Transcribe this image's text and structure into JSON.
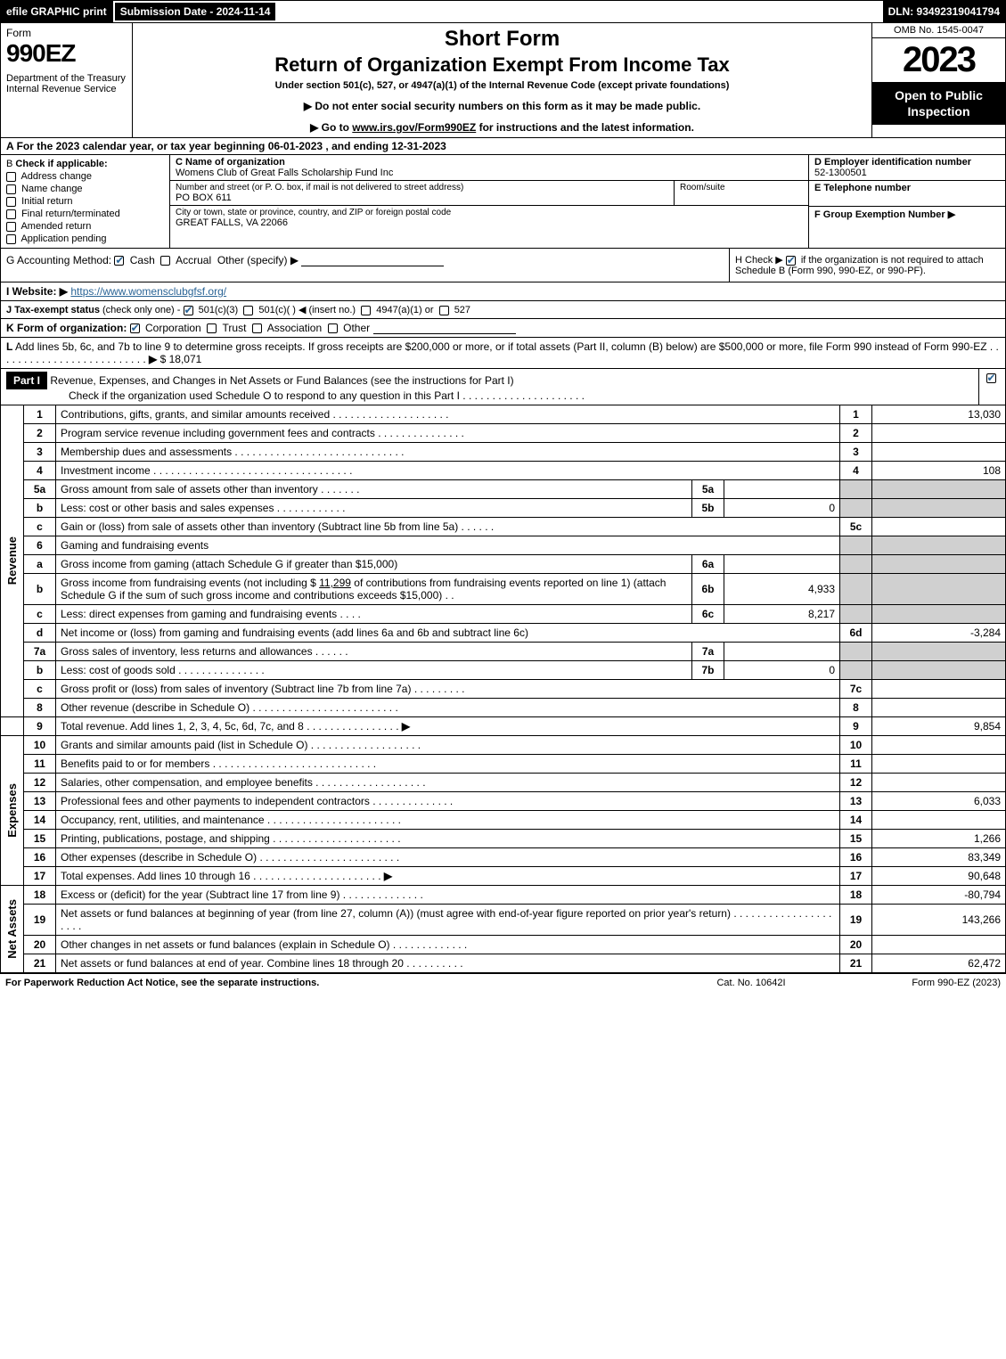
{
  "topbar": {
    "efile": "efile GRAPHIC print",
    "submission": "Submission Date - 2024-11-14",
    "dln": "DLN: 93492319041794"
  },
  "header": {
    "form_word": "Form",
    "form_number": "990EZ",
    "dept": "Department of the Treasury\nInternal Revenue Service",
    "title1": "Short Form",
    "title2": "Return of Organization Exempt From Income Tax",
    "subtitle": "Under section 501(c), 527, or 4947(a)(1) of the Internal Revenue Code (except private foundations)",
    "instr1": "▶ Do not enter social security numbers on this form as it may be made public.",
    "instr2_prefix": "▶ Go to ",
    "instr2_link": "www.irs.gov/Form990EZ",
    "instr2_suffix": " for instructions and the latest information.",
    "omb": "OMB No. 1545-0047",
    "year": "2023",
    "inspection": "Open to Public Inspection"
  },
  "row_a": {
    "prefix": "A",
    "text": "For the 2023 calendar year, or tax year beginning 06-01-2023 , and ending 12-31-2023"
  },
  "col_b": {
    "prefix": "B",
    "label": "Check if applicable:",
    "items": [
      {
        "label": "Address change",
        "checked": false
      },
      {
        "label": "Name change",
        "checked": false
      },
      {
        "label": "Initial return",
        "checked": false
      },
      {
        "label": "Final return/terminated",
        "checked": false
      },
      {
        "label": "Amended return",
        "checked": false
      },
      {
        "label": "Application pending",
        "checked": false
      }
    ]
  },
  "col_c": {
    "name_lbl": "C Name of organization",
    "name_val": "Womens Club of Great Falls Scholarship Fund Inc",
    "street_lbl": "Number and street (or P. O. box, if mail is not delivered to street address)",
    "street_val": "PO BOX 611",
    "room_lbl": "Room/suite",
    "city_lbl": "City or town, state or province, country, and ZIP or foreign postal code",
    "city_val": "GREAT FALLS, VA  22066"
  },
  "col_d": {
    "ein_lbl": "D Employer identification number",
    "ein_val": "52-1300501",
    "phone_lbl": "E Telephone number",
    "group_lbl": "F Group Exemption Number   ▶"
  },
  "row_g": {
    "label": "G Accounting Method:",
    "cash": "Cash",
    "accrual": "Accrual",
    "other": "Other (specify) ▶"
  },
  "row_h": {
    "prefix": "H",
    "text1": "Check ▶",
    "text2": "if the organization is not required to attach Schedule B (Form 990, 990-EZ, or 990-PF)."
  },
  "row_i": {
    "label": "I Website: ▶",
    "url": "https://www.womensclubgfsf.org/"
  },
  "row_j": {
    "label": "J Tax-exempt status",
    "note": "(check only one) -",
    "opt1": "501(c)(3)",
    "opt2": "501(c)(  ) ◀ (insert no.)",
    "opt3": "4947(a)(1) or",
    "opt4": "527"
  },
  "row_k": {
    "label": "K Form of organization:",
    "opts": [
      "Corporation",
      "Trust",
      "Association",
      "Other"
    ]
  },
  "row_l": {
    "label": "L",
    "text": "Add lines 5b, 6c, and 7b to line 9 to determine gross receipts. If gross receipts are $200,000 or more, or if total assets (Part II, column (B) below) are $500,000 or more, file Form 990 instead of Form 990-EZ",
    "amount": "$ 18,071"
  },
  "part1": {
    "label": "Part I",
    "title": "Revenue, Expenses, and Changes in Net Assets or Fund Balances (see the instructions for Part I)",
    "check_text": "Check if the organization used Schedule O to respond to any question in this Part I"
  },
  "sections": {
    "revenue": "Revenue",
    "expenses": "Expenses",
    "netassets": "Net Assets"
  },
  "lines": {
    "l1": {
      "num": "1",
      "desc": "Contributions, gifts, grants, and similar amounts received",
      "ln": "1",
      "amt": "13,030"
    },
    "l2": {
      "num": "2",
      "desc": "Program service revenue including government fees and contracts",
      "ln": "2",
      "amt": ""
    },
    "l3": {
      "num": "3",
      "desc": "Membership dues and assessments",
      "ln": "3",
      "amt": ""
    },
    "l4": {
      "num": "4",
      "desc": "Investment income",
      "ln": "4",
      "amt": "108"
    },
    "l5a": {
      "num": "5a",
      "desc": "Gross amount from sale of assets other than inventory",
      "sub": "5a",
      "subval": ""
    },
    "l5b": {
      "num": "b",
      "desc": "Less: cost or other basis and sales expenses",
      "sub": "5b",
      "subval": "0"
    },
    "l5c": {
      "num": "c",
      "desc": "Gain or (loss) from sale of assets other than inventory (Subtract line 5b from line 5a)",
      "ln": "5c",
      "amt": ""
    },
    "l6": {
      "num": "6",
      "desc": "Gaming and fundraising events"
    },
    "l6a": {
      "num": "a",
      "desc": "Gross income from gaming (attach Schedule G if greater than $15,000)",
      "sub": "6a",
      "subval": ""
    },
    "l6b": {
      "num": "b",
      "desc_pre": "Gross income from fundraising events (not including $ ",
      "desc_amt": "11,299",
      "desc_mid": " of contributions from fundraising events reported on line 1) (attach Schedule G if the sum of such gross income and contributions exceeds $15,000)",
      "sub": "6b",
      "subval": "4,933"
    },
    "l6c": {
      "num": "c",
      "desc": "Less: direct expenses from gaming and fundraising events",
      "sub": "6c",
      "subval": "8,217"
    },
    "l6d": {
      "num": "d",
      "desc": "Net income or (loss) from gaming and fundraising events (add lines 6a and 6b and subtract line 6c)",
      "ln": "6d",
      "amt": "-3,284"
    },
    "l7a": {
      "num": "7a",
      "desc": "Gross sales of inventory, less returns and allowances",
      "sub": "7a",
      "subval": ""
    },
    "l7b": {
      "num": "b",
      "desc": "Less: cost of goods sold",
      "sub": "7b",
      "subval": "0"
    },
    "l7c": {
      "num": "c",
      "desc": "Gross profit or (loss) from sales of inventory (Subtract line 7b from line 7a)",
      "ln": "7c",
      "amt": ""
    },
    "l8": {
      "num": "8",
      "desc": "Other revenue (describe in Schedule O)",
      "ln": "8",
      "amt": ""
    },
    "l9": {
      "num": "9",
      "desc": "Total revenue. Add lines 1, 2, 3, 4, 5c, 6d, 7c, and 8",
      "ln": "9",
      "amt": "9,854"
    },
    "l10": {
      "num": "10",
      "desc": "Grants and similar amounts paid (list in Schedule O)",
      "ln": "10",
      "amt": ""
    },
    "l11": {
      "num": "11",
      "desc": "Benefits paid to or for members",
      "ln": "11",
      "amt": ""
    },
    "l12": {
      "num": "12",
      "desc": "Salaries, other compensation, and employee benefits",
      "ln": "12",
      "amt": ""
    },
    "l13": {
      "num": "13",
      "desc": "Professional fees and other payments to independent contractors",
      "ln": "13",
      "amt": "6,033"
    },
    "l14": {
      "num": "14",
      "desc": "Occupancy, rent, utilities, and maintenance",
      "ln": "14",
      "amt": ""
    },
    "l15": {
      "num": "15",
      "desc": "Printing, publications, postage, and shipping",
      "ln": "15",
      "amt": "1,266"
    },
    "l16": {
      "num": "16",
      "desc": "Other expenses (describe in Schedule O)",
      "ln": "16",
      "amt": "83,349"
    },
    "l17": {
      "num": "17",
      "desc": "Total expenses. Add lines 10 through 16",
      "ln": "17",
      "amt": "90,648"
    },
    "l18": {
      "num": "18",
      "desc": "Excess or (deficit) for the year (Subtract line 17 from line 9)",
      "ln": "18",
      "amt": "-80,794"
    },
    "l19": {
      "num": "19",
      "desc": "Net assets or fund balances at beginning of year (from line 27, column (A)) (must agree with end-of-year figure reported on prior year's return)",
      "ln": "19",
      "amt": "143,266"
    },
    "l20": {
      "num": "20",
      "desc": "Other changes in net assets or fund balances (explain in Schedule O)",
      "ln": "20",
      "amt": ""
    },
    "l21": {
      "num": "21",
      "desc": "Net assets or fund balances at end of year. Combine lines 18 through 20",
      "ln": "21",
      "amt": "62,472"
    }
  },
  "footer": {
    "left": "For Paperwork Reduction Act Notice, see the separate instructions.",
    "mid": "Cat. No. 10642I",
    "right_prefix": "Form ",
    "right_form": "990-EZ",
    "right_suffix": " (2023)"
  }
}
